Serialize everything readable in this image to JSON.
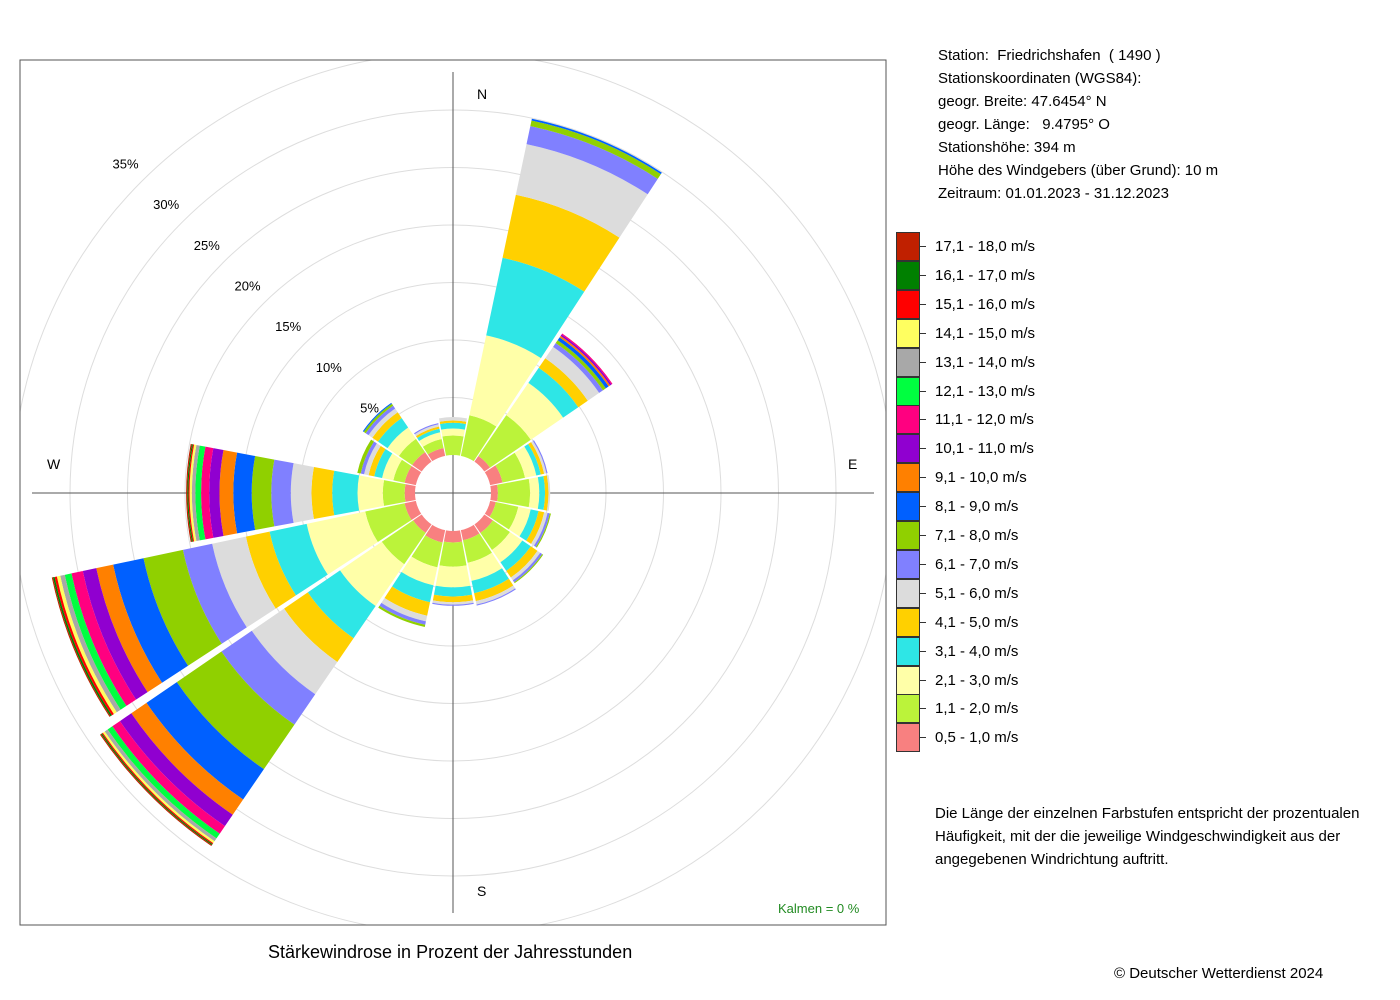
{
  "station": {
    "line1": "Station:  Friedrichshafen  ( 1490 )",
    "line2": "Stationskoordinaten (WGS84):",
    "line3": "geogr. Breite: 47.6454° N",
    "line4": "geogr. Länge:   9.4795° O",
    "line5": "Stationshöhe: 394 m",
    "line6": "Höhe des Windgebers (über Grund): 10 m",
    "line7": "Zeitraum: 01.01.2023 - 31.12.2023"
  },
  "note": "Die Länge der einzelnen Farbstufen entspricht der prozentualen Häufigkeit, mit der die jeweilige Windgeschwindigkeit aus der angegebenen Windrichtung auftritt.",
  "caption": "Stärkewindrose in Prozent der Jahresstunden",
  "copyright": "© Deutscher Wetterdienst  2024",
  "calm_label": "Kalmen  =  0 %",
  "chart_data": {
    "type": "windrose",
    "title": "Stärkewindrose in Prozent der Jahresstunden",
    "unit": "%",
    "directions": [
      "N",
      "NNE",
      "NE",
      "ENE",
      "E",
      "ESE",
      "SE",
      "SSE",
      "S",
      "SSW",
      "SW",
      "WSW",
      "W",
      "WNW",
      "NW",
      "NNW"
    ],
    "compass_labels": {
      "N": "N",
      "E": "E",
      "S": "S",
      "W": "W"
    },
    "ring_labels": [
      "5%",
      "10%",
      "15%",
      "20%",
      "25%",
      "30%",
      "35%"
    ],
    "ring_values": [
      5,
      10,
      15,
      20,
      25,
      30,
      35
    ],
    "calm_percent": 0,
    "speed_classes": [
      {
        "label": "0,5 - 1,0 m/s",
        "color": "#f88080"
      },
      {
        "label": "1,1 - 2,0 m/s",
        "color": "#bbf33a"
      },
      {
        "label": "2,1 - 3,0 m/s",
        "color": "#ffffa8"
      },
      {
        "label": "3,1 - 4,0 m/s",
        "color": "#2ee6e6"
      },
      {
        "label": "4,1 - 5,0 m/s",
        "color": "#ffd000"
      },
      {
        "label": "5,1 - 6,0 m/s",
        "color": "#dcdcdc"
      },
      {
        "label": "6,1 - 7,0 m/s",
        "color": "#8080ff"
      },
      {
        "label": "7,1 - 8,0 m/s",
        "color": "#90d000"
      },
      {
        "label": "8,1 - 9,0 m/s",
        "color": "#0060ff"
      },
      {
        "label": "9,1 - 10,0 m/s",
        "color": "#ff8000"
      },
      {
        "label": "10,1 - 11,0 m/s",
        "color": "#9000d0"
      },
      {
        "label": "11,1 - 12,0 m/s",
        "color": "#ff0080"
      },
      {
        "label": "12,1 - 13,0 m/s",
        "color": "#00ff40"
      },
      {
        "label": "13,1 - 14,0 m/s",
        "color": "#a8a8a8"
      },
      {
        "label": "14,1 - 15,0 m/s",
        "color": "#ffff60"
      },
      {
        "label": "15,1 - 16,0 m/s",
        "color": "#ff0000"
      },
      {
        "label": "16,1 - 17,0 m/s",
        "color": "#008000"
      },
      {
        "label": "17,1 - 18,0 m/s",
        "color": "#c02000"
      }
    ],
    "series": [
      {
        "direction": "N",
        "values": [
          0.0,
          1.7,
          0.6,
          0.5,
          0.2,
          0.3
        ]
      },
      {
        "direction": "NNE",
        "values": [
          0.0,
          3.6,
          7.1,
          6.9,
          5.6,
          4.5,
          1.6,
          0.5,
          0.15
        ]
      },
      {
        "direction": "NE",
        "values": [
          0.6,
          4.3,
          3.4,
          1.6,
          1.0,
          1.2,
          0.4,
          0.3,
          0.3,
          0.15,
          0.15,
          0.1
        ]
      },
      {
        "direction": "ENE",
        "values": [
          1.1,
          2.0,
          1.0,
          0.4,
          0.3,
          0.2,
          0.1
        ]
      },
      {
        "direction": "E",
        "values": [
          0.6,
          2.8,
          0.8,
          0.5,
          0.3,
          0.15
        ]
      },
      {
        "direction": "ESE",
        "values": [
          0.5,
          2.0,
          1.1,
          0.7,
          0.5,
          0.3,
          0.2,
          0.1
        ]
      },
      {
        "direction": "SE",
        "values": [
          0.9,
          1.8,
          1.3,
          0.9,
          0.7,
          0.3,
          0.2,
          0.1
        ]
      },
      {
        "direction": "SSE",
        "values": [
          0.9,
          2.0,
          1.6,
          1.1,
          0.7,
          0.3,
          0.1
        ]
      },
      {
        "direction": "S",
        "values": [
          1.0,
          2.1,
          1.8,
          0.8,
          0.5,
          0.2,
          0.1
        ]
      },
      {
        "direction": "SSW",
        "values": [
          1.1,
          2.2,
          1.6,
          1.5,
          1.2,
          0.5,
          0.3,
          0.2
        ]
      },
      {
        "direction": "SW",
        "values": [
          0.9,
          3.3,
          4.4,
          3.4,
          2.5,
          3.4,
          3.2,
          4.7,
          3.2,
          1.6,
          1.2,
          0.8,
          0.5,
          0.3,
          0.2,
          0.1,
          0.1,
          0.1
        ]
      },
      {
        "direction": "WSW",
        "values": [
          1.0,
          3.5,
          5.2,
          3.3,
          2.1,
          3.0,
          2.6,
          3.5,
          2.7,
          1.5,
          1.2,
          1.0,
          0.6,
          0.4,
          0.3,
          0.2,
          0.15,
          0.1
        ]
      },
      {
        "direction": "W",
        "values": [
          0.9,
          1.9,
          2.2,
          2.2,
          1.8,
          1.8,
          1.7,
          1.7,
          1.6,
          1.2,
          0.9,
          0.7,
          0.5,
          0.3,
          0.2,
          0.1,
          0.1,
          0.1
        ]
      },
      {
        "direction": "WNW",
        "values": [
          1.0,
          1.0,
          1.0,
          0.7,
          0.5,
          0.4,
          0.3,
          0.3
        ]
      },
      {
        "direction": "NW",
        "values": [
          1.0,
          1.4,
          1.2,
          1.0,
          0.6,
          0.4,
          0.3,
          0.2,
          0.1
        ]
      },
      {
        "direction": "NNW",
        "values": [
          0.7,
          0.8,
          0.6,
          0.3,
          0.2,
          0.2,
          0.1
        ]
      }
    ]
  }
}
